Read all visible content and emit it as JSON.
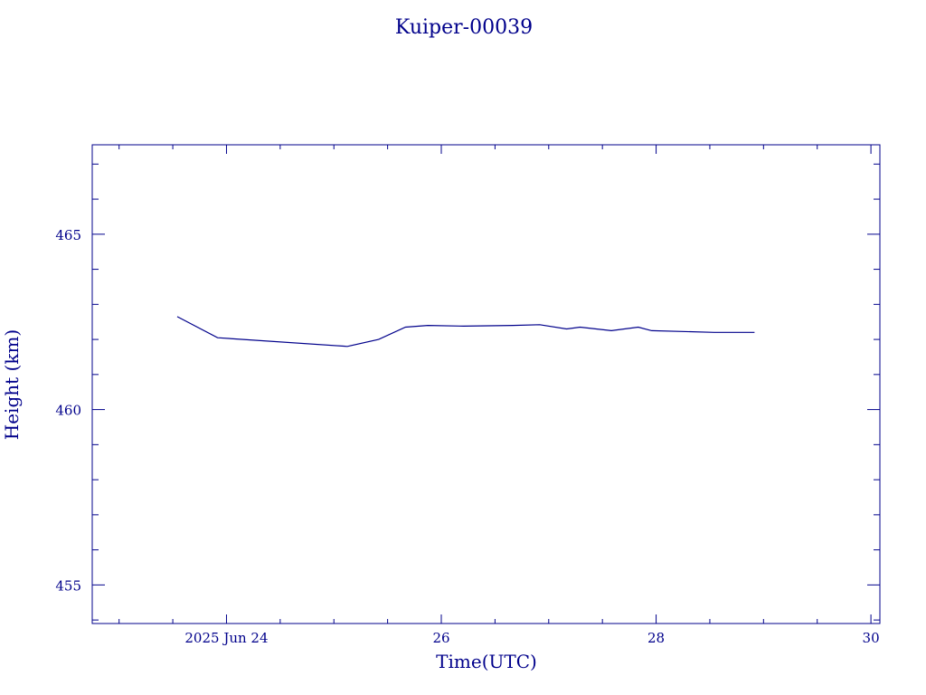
{
  "chart_data": {
    "type": "line",
    "title": "Kuiper-00039",
    "xlabel": "Time(UTC)",
    "ylabel": "Height (km)",
    "x_unit": "days",
    "xlim": [
      "2025-06-22 18:00",
      "2025-06-30 02:00"
    ],
    "ylim": [
      453.9,
      467.55
    ],
    "x_ticks": [
      {
        "value": "2025-06-24 00:00",
        "label": "2025 Jun 24"
      },
      {
        "value": "2025-06-26 00:00",
        "label": "26"
      },
      {
        "value": "2025-06-28 00:00",
        "label": "28"
      },
      {
        "value": "2025-06-30 00:00",
        "label": "30"
      }
    ],
    "y_ticks": [
      {
        "value": 455,
        "label": "455"
      },
      {
        "value": 460,
        "label": "460"
      },
      {
        "value": 465,
        "label": "465"
      }
    ],
    "grid": false,
    "legend": "none",
    "series": [
      {
        "color": "#00008b",
        "points": [
          {
            "x": "2025-06-23 13:00",
            "y": 462.65
          },
          {
            "x": "2025-06-23 22:00",
            "y": 462.05
          },
          {
            "x": "2025-06-25 03:00",
            "y": 461.8
          },
          {
            "x": "2025-06-25 10:00",
            "y": 462.0
          },
          {
            "x": "2025-06-25 16:00",
            "y": 462.35
          },
          {
            "x": "2025-06-25 21:00",
            "y": 462.4
          },
          {
            "x": "2025-06-26 05:00",
            "y": 462.38
          },
          {
            "x": "2025-06-26 16:00",
            "y": 462.4
          },
          {
            "x": "2025-06-26 22:00",
            "y": 462.42
          },
          {
            "x": "2025-06-27 04:00",
            "y": 462.3
          },
          {
            "x": "2025-06-27 07:00",
            "y": 462.35
          },
          {
            "x": "2025-06-27 14:00",
            "y": 462.25
          },
          {
            "x": "2025-06-27 20:00",
            "y": 462.35
          },
          {
            "x": "2025-06-27 23:00",
            "y": 462.25
          },
          {
            "x": "2025-06-28 13:00",
            "y": 462.2
          },
          {
            "x": "2025-06-28 22:00",
            "y": 462.2
          }
        ]
      }
    ]
  }
}
